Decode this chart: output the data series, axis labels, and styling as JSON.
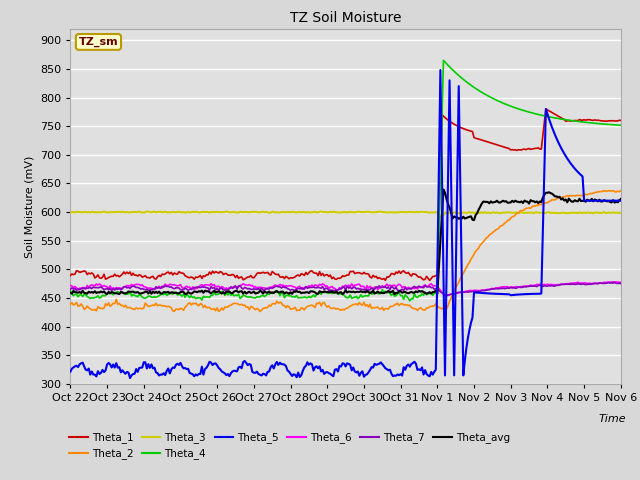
{
  "title": "TZ Soil Moisture",
  "xlabel": "Time",
  "ylabel": "Soil Moisture (mV)",
  "ylim": [
    300,
    920
  ],
  "yticks": [
    300,
    350,
    400,
    450,
    500,
    550,
    600,
    650,
    700,
    750,
    800,
    850,
    900
  ],
  "bg_color": "#d8d8d8",
  "plot_bg_color": "#e0e0e0",
  "legend_label": "TZ_sm",
  "series_colors": {
    "Theta_1": "#cc0000",
    "Theta_2": "#ff8800",
    "Theta_3": "#cccc00",
    "Theta_4": "#00cc00",
    "Theta_5": "#0000ee",
    "Theta_6": "#ff00ff",
    "Theta_7": "#8800bb",
    "Theta_avg": "#000000"
  },
  "tick_labels": [
    "Oct 22",
    "Oct 23",
    "Oct 24",
    "Oct 25",
    "Oct 26",
    "Oct 27",
    "Oct 28",
    "Oct 29",
    "Oct 30",
    "Oct 31",
    "Nov 1",
    "Nov 2",
    "Nov 3",
    "Nov 4",
    "Nov 5",
    "Nov 6"
  ]
}
